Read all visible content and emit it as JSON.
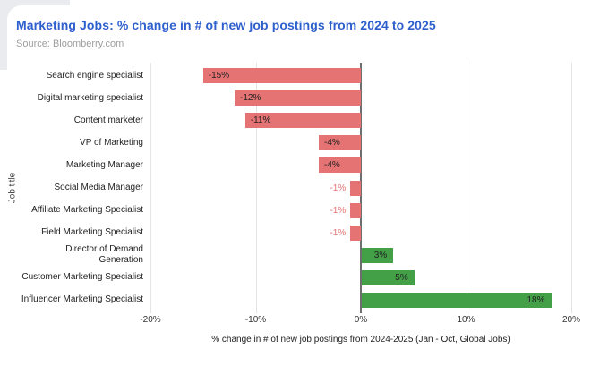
{
  "header": {
    "title": "Marketing Jobs: % change in # of new job postings from 2024 to 2025",
    "title_color": "#2d5fcd",
    "source": "Source: Bloomberry.com"
  },
  "chart_data": {
    "type": "bar",
    "orientation": "horizontal",
    "title": "Marketing Jobs: % change in # of new job postings from 2024 to 2025",
    "categories": [
      "Search engine specialist",
      "Digital marketing specialist",
      "Content marketer",
      "VP of Marketing",
      "Marketing Manager",
      "Social Media Manager",
      "Affiliate Marketing Specialist",
      "Field Marketing Specialist",
      "Director of Demand\nGeneration",
      "Customer Marketing Specialist",
      "Influencer Marketing Specialist"
    ],
    "values": [
      -15,
      -12,
      -11,
      -4,
      -4,
      -1,
      -1,
      -1,
      3,
      5,
      18
    ],
    "value_labels": [
      "-15%",
      "-12%",
      "-11%",
      "-4%",
      "-4%",
      "-1%",
      "-1%",
      "-1%",
      "3%",
      "5%",
      "18%"
    ],
    "xlabel": "% change in # of new job postings from 2024-2025 (Jan - Oct, Global Jobs)",
    "ylabel": "Job title",
    "xlim": [
      -20,
      20
    ],
    "xticks": [
      {
        "value": -20,
        "label": "-20%"
      },
      {
        "value": -10,
        "label": "-10%"
      },
      {
        "value": 0,
        "label": "0%"
      },
      {
        "value": 10,
        "label": "10%"
      },
      {
        "value": 20,
        "label": "20%"
      }
    ],
    "grid": "vertical",
    "legend": "none",
    "colors": {
      "negative_bar": "#e57373",
      "positive_bar": "#43a047",
      "small_value_label": "#e57373",
      "value_label": "#212121"
    }
  }
}
